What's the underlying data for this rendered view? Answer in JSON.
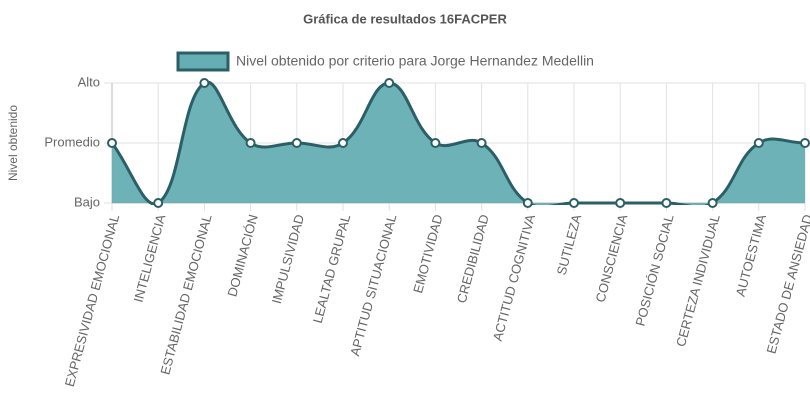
{
  "chart_data": {
    "type": "line",
    "title": "Gráfica de resultados 16FACPER",
    "y_label": "Nivel obtenido",
    "categories": [
      "EXPRESIVIDAD EMOCIONAL",
      "INTELIGENCIA",
      "ESTABILIDAD EMOCIONAL",
      "DOMINACIÓN",
      "IMPULSIVIDAD",
      "LEALTAD GRUPAL",
      "APTITUD SITUACIONAL",
      "EMOTIVIDAD",
      "CREDIBILIDAD",
      "ACTITUD COGNITIVA",
      "SUTILEZA",
      "CONSCIENCIA",
      "POSICIÓN SOCIAL",
      "CERTEZA INDIVIDUAL",
      "AUTOESTIMA",
      "ESTADO DE ANSIEDAD"
    ],
    "series": [
      {
        "name": "Nivel obtenido por criterio para Jorge Hernandez Medellin",
        "color": "#2b5f66",
        "fill": "#65aeb3",
        "values": [
          2,
          1,
          3,
          2,
          2,
          2,
          3,
          2,
          2,
          1,
          1,
          1,
          1,
          1,
          2,
          2
        ]
      }
    ],
    "ylim": [
      1,
      3
    ],
    "yticks": [
      {
        "value": 1,
        "label": "Bajo"
      },
      {
        "value": 2,
        "label": "Promedio"
      },
      {
        "value": 3,
        "label": "Alto"
      }
    ],
    "grid": true,
    "smooth": true,
    "legend": "top"
  }
}
